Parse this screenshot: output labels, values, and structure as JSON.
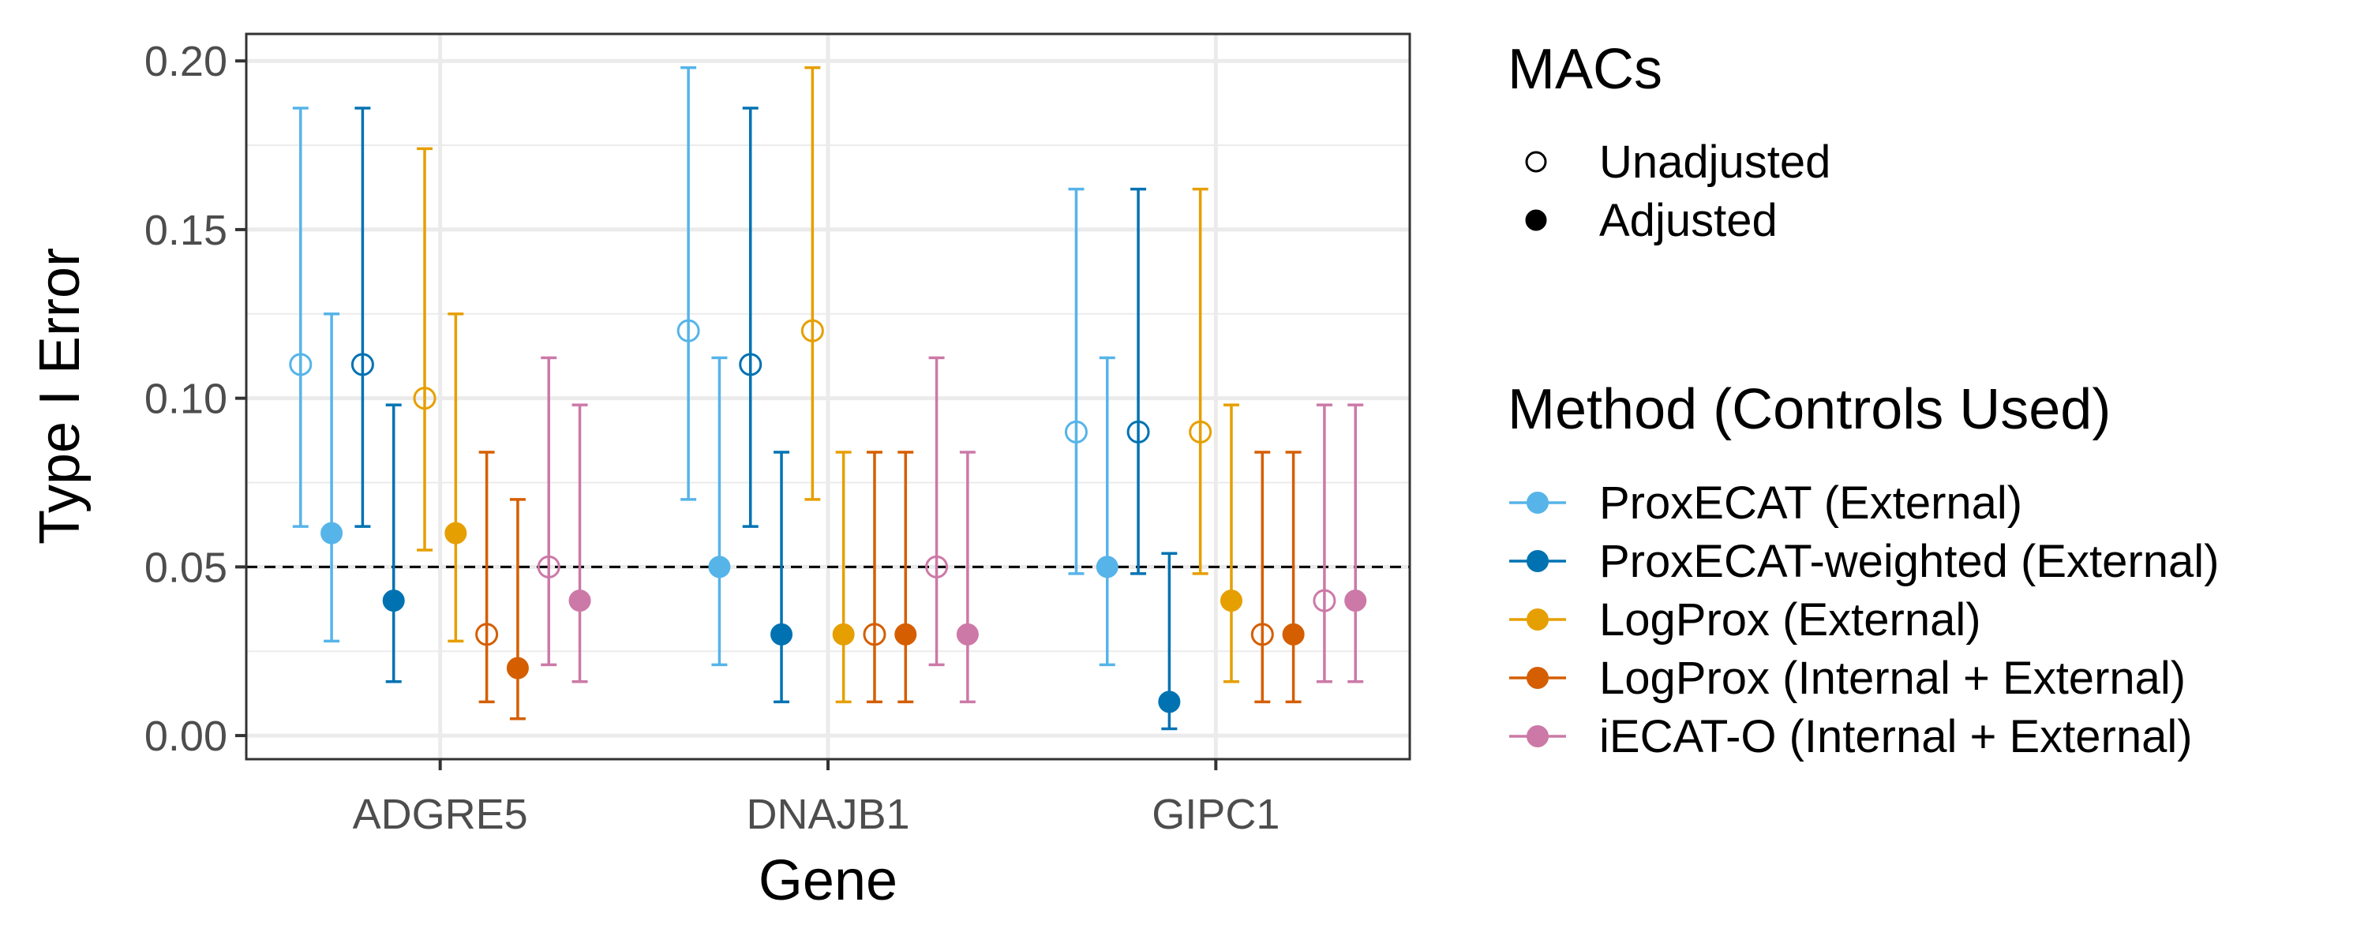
{
  "chart_data": {
    "type": "scatter",
    "subtype": "point-with-error-bars",
    "xlabel": "Gene",
    "ylabel": "Type I Error",
    "categories": [
      "ADGRE5",
      "DNAJB1",
      "GIPC1"
    ],
    "ylim": [
      -0.007,
      0.208
    ],
    "yticks": [
      0.0,
      0.05,
      0.1,
      0.15,
      0.2
    ],
    "ytick_labels": [
      "0.00",
      "0.05",
      "0.10",
      "0.15",
      "0.20"
    ],
    "reference_line": {
      "y": 0.05,
      "style": "dashed",
      "color": "#000000"
    },
    "grid": true,
    "legend_position": "right",
    "legends": [
      {
        "title": "MACs",
        "entries": [
          {
            "label": "Unadjusted",
            "shape": "open-circle"
          },
          {
            "label": "Adjusted",
            "shape": "filled-circle"
          }
        ]
      },
      {
        "title": "Method (Controls Used)",
        "entries": [
          {
            "label": "ProxECAT (External)",
            "color": "#56B4E9"
          },
          {
            "label": "ProxECAT-weighted (External)",
            "color": "#0072B2"
          },
          {
            "label": "LogProx (External)",
            "color": "#E69F00"
          },
          {
            "label": "LogProx (Internal + External)",
            "color": "#D55E00"
          },
          {
            "label": "iECAT-O (Internal + External)",
            "color": "#CC79A7"
          }
        ]
      }
    ],
    "series": [
      {
        "method": "ProxECAT (External)",
        "macs": "Unadjusted",
        "color": "#56B4E9",
        "values": [
          0.11,
          0.12,
          0.09
        ],
        "lower": [
          0.062,
          0.07,
          0.048
        ],
        "upper": [
          0.186,
          0.198,
          0.162
        ]
      },
      {
        "method": "ProxECAT (External)",
        "macs": "Adjusted",
        "color": "#56B4E9",
        "values": [
          0.06,
          0.05,
          0.05
        ],
        "lower": [
          0.028,
          0.021,
          0.021
        ],
        "upper": [
          0.125,
          0.112,
          0.112
        ]
      },
      {
        "method": "ProxECAT-weighted (External)",
        "macs": "Unadjusted",
        "color": "#0072B2",
        "values": [
          0.11,
          0.11,
          0.09
        ],
        "lower": [
          0.062,
          0.062,
          0.048
        ],
        "upper": [
          0.186,
          0.186,
          0.162
        ]
      },
      {
        "method": "ProxECAT-weighted (External)",
        "macs": "Adjusted",
        "color": "#0072B2",
        "values": [
          0.04,
          0.03,
          0.01
        ],
        "lower": [
          0.016,
          0.01,
          0.002
        ],
        "upper": [
          0.098,
          0.084,
          0.054
        ]
      },
      {
        "method": "LogProx (External)",
        "macs": "Unadjusted",
        "color": "#E69F00",
        "values": [
          0.1,
          0.12,
          0.09
        ],
        "lower": [
          0.055,
          0.07,
          0.048
        ],
        "upper": [
          0.174,
          0.198,
          0.162
        ]
      },
      {
        "method": "LogProx (External)",
        "macs": "Adjusted",
        "color": "#E69F00",
        "values": [
          0.06,
          0.03,
          0.04
        ],
        "lower": [
          0.028,
          0.01,
          0.016
        ],
        "upper": [
          0.125,
          0.084,
          0.098
        ]
      },
      {
        "method": "LogProx (Internal + External)",
        "macs": "Unadjusted",
        "color": "#D55E00",
        "values": [
          0.03,
          0.03,
          0.03
        ],
        "lower": [
          0.01,
          0.01,
          0.01
        ],
        "upper": [
          0.084,
          0.084,
          0.084
        ]
      },
      {
        "method": "LogProx (Internal + External)",
        "macs": "Adjusted",
        "color": "#D55E00",
        "values": [
          0.02,
          0.03,
          0.03
        ],
        "lower": [
          0.005,
          0.01,
          0.01
        ],
        "upper": [
          0.07,
          0.084,
          0.084
        ]
      },
      {
        "method": "iECAT-O (Internal + External)",
        "macs": "Unadjusted",
        "color": "#CC79A7",
        "values": [
          0.05,
          0.05,
          0.04
        ],
        "lower": [
          0.021,
          0.021,
          0.016
        ],
        "upper": [
          0.112,
          0.112,
          0.098
        ]
      },
      {
        "method": "iECAT-O (Internal + External)",
        "macs": "Adjusted",
        "color": "#CC79A7",
        "values": [
          0.04,
          0.03,
          0.04
        ],
        "lower": [
          0.016,
          0.01,
          0.016
        ],
        "upper": [
          0.098,
          0.084,
          0.098
        ]
      }
    ]
  }
}
